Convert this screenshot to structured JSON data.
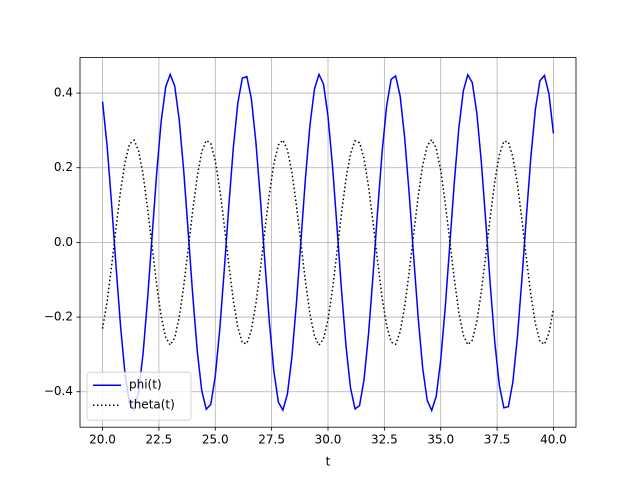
{
  "chart_data": {
    "type": "line",
    "xlabel": "t",
    "xlim": [
      19,
      41
    ],
    "ylim": [
      -0.495,
      0.495
    ],
    "xticks": [
      {
        "value": 20,
        "label": "20.0"
      },
      22.5,
      {
        "value": 25,
        "label": "25.0"
      },
      27.5,
      {
        "value": 30,
        "label": "30.0"
      },
      32.5,
      {
        "value": 35,
        "label": "35.0"
      },
      37.5,
      {
        "value": 40,
        "label": "40.0"
      }
    ],
    "yticks": [
      {
        "value": -0.4,
        "label": "−0.4"
      },
      {
        "value": -0.2,
        "label": "−0.2"
      },
      {
        "value": 0,
        "label": "0.0"
      },
      0.2,
      0.4
    ],
    "grid": true,
    "legend_position": "lower left",
    "x": [
      20.0,
      20.2,
      20.4,
      20.6,
      20.8,
      21.0,
      21.2,
      21.4,
      21.6,
      21.8,
      22.0,
      22.2,
      22.4,
      22.6,
      22.8,
      23.0,
      23.2,
      23.4,
      23.6,
      23.8,
      24.0,
      24.2,
      24.4,
      24.6,
      24.8,
      25.0,
      25.2,
      25.4,
      25.6,
      25.8,
      26.0,
      26.2,
      26.4,
      26.6,
      26.8,
      27.0,
      27.2,
      27.4,
      27.6,
      27.8,
      28.0,
      28.2,
      28.4,
      28.6,
      28.8,
      29.0,
      29.2,
      29.4,
      29.6,
      29.8,
      30.0,
      30.2,
      30.4,
      30.6,
      30.8,
      31.0,
      31.2,
      31.4,
      31.6,
      31.8,
      32.0,
      32.2,
      32.4,
      32.6,
      32.8,
      33.0,
      33.2,
      33.4,
      33.6,
      33.8,
      34.0,
      34.2,
      34.4,
      34.6,
      34.8,
      35.0,
      35.2,
      35.4,
      35.6,
      35.8,
      36.0,
      36.2,
      36.4,
      36.6,
      36.8,
      37.0,
      37.2,
      37.4,
      37.6,
      37.8,
      38.0,
      38.2,
      38.4,
      38.6,
      38.8,
      39.0,
      39.2,
      39.4,
      39.6,
      39.8,
      40.0
    ],
    "series": [
      {
        "name": "phi(t)",
        "color": "#0000ff",
        "linestyle": "solid",
        "values": [
          0.377,
          0.26,
          0.105,
          -0.065,
          -0.225,
          -0.354,
          -0.432,
          -0.448,
          -0.401,
          -0.296,
          -0.149,
          0.019,
          0.184,
          0.324,
          0.416,
          0.45,
          0.419,
          0.329,
          0.192,
          0.027,
          -0.141,
          -0.29,
          -0.397,
          -0.447,
          -0.434,
          -0.359,
          -0.232,
          -0.073,
          0.097,
          0.253,
          0.373,
          0.44,
          0.444,
          0.385,
          0.27,
          0.118,
          -0.052,
          -0.214,
          -0.346,
          -0.428,
          -0.449,
          -0.406,
          -0.306,
          -0.162,
          0.005,
          0.172,
          0.314,
          0.411,
          0.45,
          0.424,
          0.338,
          0.204,
          0.041,
          -0.129,
          -0.279,
          -0.39,
          -0.446,
          -0.437,
          -0.367,
          -0.244,
          -0.086,
          0.084,
          0.242,
          0.365,
          0.437,
          0.446,
          0.392,
          0.281,
          0.131,
          -0.038,
          -0.202,
          -0.337,
          -0.423,
          -0.45,
          -0.412,
          -0.315,
          -0.174,
          -0.008,
          0.159,
          0.304,
          0.405,
          0.449,
          0.428,
          0.347,
          0.216,
          0.054,
          -0.116,
          -0.269,
          -0.383,
          -0.443,
          -0.44,
          -0.374,
          -0.255,
          -0.099,
          0.07,
          0.23,
          0.357,
          0.433,
          0.447,
          0.398,
          0.292
        ]
      },
      {
        "name": "theta(t)",
        "color": "#000000",
        "linestyle": "dotted",
        "values": [
          -0.231,
          -0.159,
          -0.064,
          0.04,
          0.138,
          0.216,
          0.264,
          0.274,
          0.245,
          0.181,
          0.091,
          -0.012,
          -0.113,
          -0.198,
          -0.254,
          -0.275,
          -0.256,
          -0.201,
          -0.117,
          -0.017,
          0.086,
          0.177,
          0.243,
          0.273,
          0.265,
          0.219,
          0.142,
          0.045,
          -0.059,
          -0.155,
          -0.228,
          -0.269,
          -0.271,
          -0.235,
          -0.165,
          -0.072,
          0.032,
          0.131,
          0.211,
          0.261,
          0.274,
          0.248,
          0.187,
          0.099,
          -0.003,
          -0.105,
          -0.192,
          -0.251,
          -0.275,
          -0.259,
          -0.207,
          -0.125,
          -0.025,
          0.079,
          0.171,
          0.238,
          0.272,
          0.267,
          0.224,
          0.149,
          0.053,
          -0.051,
          -0.148,
          -0.223,
          -0.267,
          -0.273,
          -0.239,
          -0.172,
          -0.08,
          0.023,
          0.123,
          0.206,
          0.259,
          0.275,
          0.252,
          0.193,
          0.106,
          0.005,
          -0.097,
          -0.186,
          -0.248,
          -0.274,
          -0.262,
          -0.212,
          -0.132,
          -0.033,
          0.071,
          0.164,
          0.234,
          0.271,
          0.269,
          0.229,
          0.156,
          0.061,
          -0.043,
          -0.141,
          -0.218,
          -0.265,
          -0.273,
          -0.243,
          -0.178
        ]
      }
    ]
  }
}
